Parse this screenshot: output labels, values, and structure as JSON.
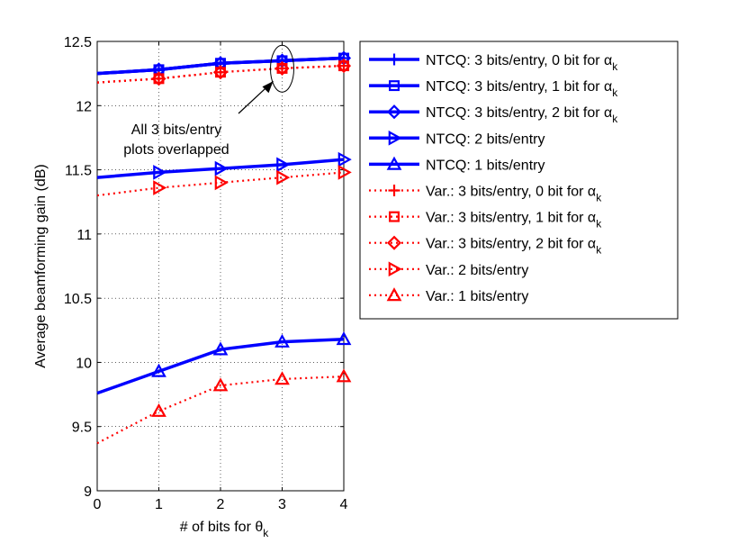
{
  "chart_data": {
    "type": "line",
    "title": "",
    "xlabel": "# of bits for θ",
    "xlabel_sub": "k",
    "ylabel": "Average beamforming gain (dB)",
    "xlim": [
      0,
      4
    ],
    "ylim": [
      9,
      12.5
    ],
    "xticks": [
      0,
      1,
      2,
      3,
      4
    ],
    "yticks": [
      9,
      9.5,
      10,
      10.5,
      11,
      11.5,
      12,
      12.5
    ],
    "xtick_labels": [
      "0",
      "1",
      "2",
      "3",
      "4"
    ],
    "ytick_labels": [
      "9",
      "9.5",
      "10",
      "10.5",
      "11",
      "11.5",
      "12",
      "12.5"
    ],
    "grid": true,
    "legend_position": "outside-right",
    "x": [
      0,
      1,
      2,
      3,
      4
    ],
    "series": [
      {
        "name": "NTCQ: 3 bits/entry, 0 bit for α",
        "name_sub": "k",
        "color": "#0000ff",
        "style": "solid",
        "marker": "plus",
        "values": [
          12.25,
          12.28,
          12.33,
          12.35,
          12.37
        ]
      },
      {
        "name": "NTCQ: 3 bits/entry, 1 bit for α",
        "name_sub": "k",
        "color": "#0000ff",
        "style": "solid",
        "marker": "square",
        "values": [
          12.25,
          12.28,
          12.33,
          12.35,
          12.37
        ]
      },
      {
        "name": "NTCQ: 3 bits/entry, 2 bit for α",
        "name_sub": "k",
        "color": "#0000ff",
        "style": "solid",
        "marker": "diamond",
        "values": [
          12.25,
          12.28,
          12.33,
          12.35,
          12.37
        ]
      },
      {
        "name": "NTCQ: 2 bits/entry",
        "name_sub": "",
        "color": "#0000ff",
        "style": "solid",
        "marker": "triangle-right",
        "values": [
          11.44,
          11.48,
          11.51,
          11.54,
          11.58
        ]
      },
      {
        "name": "NTCQ: 1 bits/entry",
        "name_sub": "",
        "color": "#0000ff",
        "style": "solid",
        "marker": "triangle-up",
        "values": [
          9.76,
          9.93,
          10.1,
          10.16,
          10.18
        ]
      },
      {
        "name": "Var.: 3 bits/entry, 0 bit for α",
        "name_sub": "k",
        "color": "#ff0000",
        "style": "dotted",
        "marker": "plus",
        "values": [
          12.18,
          12.21,
          12.26,
          12.29,
          12.31
        ]
      },
      {
        "name": "Var.: 3 bits/entry, 1 bit for α",
        "name_sub": "k",
        "color": "#ff0000",
        "style": "dotted",
        "marker": "square",
        "values": [
          12.18,
          12.21,
          12.26,
          12.29,
          12.31
        ]
      },
      {
        "name": "Var.: 3 bits/entry, 2 bit for α",
        "name_sub": "k",
        "color": "#ff0000",
        "style": "dotted",
        "marker": "diamond",
        "values": [
          12.18,
          12.21,
          12.26,
          12.29,
          12.31
        ]
      },
      {
        "name": "Var.: 2 bits/entry",
        "name_sub": "",
        "color": "#ff0000",
        "style": "dotted",
        "marker": "triangle-right",
        "values": [
          11.3,
          11.36,
          11.4,
          11.44,
          11.48
        ]
      },
      {
        "name": "Var.: 1 bits/entry",
        "name_sub": "",
        "color": "#ff0000",
        "style": "dotted",
        "marker": "triangle-up",
        "values": [
          9.37,
          9.62,
          9.82,
          9.87,
          9.89
        ]
      }
    ],
    "annotation": {
      "lines": [
        "All 3 bits/entry",
        "plots overlapped"
      ],
      "target_x": 3,
      "target_y": 12.33
    }
  }
}
